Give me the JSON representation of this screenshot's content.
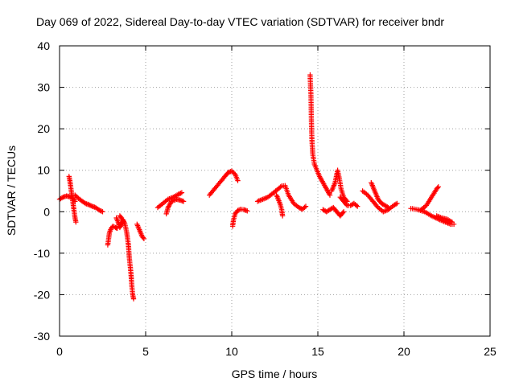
{
  "chart_data": {
    "type": "scatter",
    "title": "Day 069 of 2022, Sidereal Day-to-day VTEC variation (SDTVAR) for receiver bndr",
    "xlabel": "GPS time / hours",
    "ylabel": "SDTVAR / TECUs",
    "xlim": [
      0,
      25
    ],
    "ylim": [
      -30,
      40
    ],
    "xticks": [
      "0",
      "5",
      "10",
      "15",
      "20",
      "25"
    ],
    "yticks": [
      "40",
      "30",
      "20",
      "10",
      "0",
      "-10",
      "-20",
      "-30"
    ],
    "grid": true,
    "marker": "plus",
    "series": [
      {
        "name": "SDTVAR",
        "color": "#ff0000",
        "segments": [
          [
            [
              0.0,
              3.0
            ],
            [
              0.2,
              3.5
            ],
            [
              0.4,
              3.8
            ],
            [
              0.6,
              3.6
            ],
            [
              0.8,
              3.2
            ],
            [
              0.9,
              2.5
            ]
          ],
          [
            [
              0.55,
              8.5
            ],
            [
              0.6,
              7.5
            ],
            [
              0.65,
              6.0
            ],
            [
              0.7,
              4.5
            ],
            [
              0.75,
              3.0
            ],
            [
              0.8,
              1.5
            ],
            [
              0.85,
              0.0
            ],
            [
              0.9,
              -1.5
            ],
            [
              0.95,
              -2.5
            ]
          ],
          [
            [
              0.9,
              4.0
            ],
            [
              1.1,
              3.2
            ],
            [
              1.3,
              2.6
            ],
            [
              1.5,
              2.0
            ],
            [
              1.7,
              1.7
            ],
            [
              1.9,
              1.3
            ],
            [
              2.1,
              1.0
            ],
            [
              2.3,
              0.4
            ],
            [
              2.5,
              0.0
            ]
          ],
          [
            [
              2.8,
              -8.0
            ],
            [
              2.85,
              -6.5
            ],
            [
              2.9,
              -5.0
            ],
            [
              3.0,
              -4.0
            ],
            [
              3.1,
              -3.5
            ],
            [
              3.25,
              -3.8
            ],
            [
              3.35,
              -4.0
            ]
          ],
          [
            [
              3.3,
              -1.5
            ],
            [
              3.4,
              -2.5
            ],
            [
              3.5,
              -3.8
            ],
            [
              3.6,
              -3.0
            ],
            [
              3.7,
              -2.0
            ],
            [
              3.8,
              -3.0
            ],
            [
              3.9,
              -5.0
            ],
            [
              4.0,
              -8.0
            ],
            [
              4.05,
              -11.0
            ],
            [
              4.1,
              -13.0
            ],
            [
              4.15,
              -15.0
            ],
            [
              4.2,
              -18.0
            ],
            [
              4.25,
              -20.0
            ],
            [
              4.3,
              -21.0
            ]
          ],
          [
            [
              3.5,
              -1.0
            ],
            [
              3.6,
              -1.5
            ],
            [
              3.7,
              -2.5
            ]
          ],
          [
            [
              4.5,
              -3.0
            ],
            [
              4.6,
              -4.0
            ],
            [
              4.7,
              -5.0
            ],
            [
              4.8,
              -6.0
            ],
            [
              4.9,
              -6.5
            ]
          ],
          [
            [
              5.7,
              1.0
            ],
            [
              6.0,
              2.0
            ],
            [
              6.3,
              3.0
            ],
            [
              6.6,
              3.5
            ],
            [
              6.9,
              4.2
            ],
            [
              7.1,
              4.6
            ]
          ],
          [
            [
              6.2,
              -0.5
            ],
            [
              6.3,
              1.0
            ],
            [
              6.5,
              2.5
            ],
            [
              6.8,
              3.0
            ],
            [
              7.0,
              2.8
            ],
            [
              7.2,
              2.5
            ]
          ],
          [
            [
              8.7,
              4.0
            ],
            [
              9.0,
              5.5
            ],
            [
              9.3,
              7.0
            ],
            [
              9.6,
              8.5
            ],
            [
              9.8,
              9.5
            ],
            [
              10.0,
              9.8
            ],
            [
              10.2,
              9.0
            ],
            [
              10.35,
              7.5
            ]
          ],
          [
            [
              10.05,
              -3.5
            ],
            [
              10.1,
              -2.0
            ],
            [
              10.2,
              -0.5
            ],
            [
              10.35,
              0.3
            ],
            [
              10.5,
              0.6
            ],
            [
              10.7,
              0.5
            ],
            [
              10.9,
              0.2
            ]
          ],
          [
            [
              11.5,
              2.5
            ],
            [
              11.8,
              3.0
            ],
            [
              12.1,
              3.5
            ],
            [
              12.4,
              4.5
            ],
            [
              12.7,
              5.5
            ],
            [
              12.9,
              6.2
            ],
            [
              13.1,
              6.3
            ],
            [
              13.3,
              4.0
            ],
            [
              13.6,
              2.0
            ],
            [
              13.9,
              1.0
            ],
            [
              14.1,
              0.6
            ],
            [
              14.3,
              1.3
            ]
          ],
          [
            [
              12.6,
              4.0
            ],
            [
              12.8,
              2.0
            ],
            [
              12.9,
              0.5
            ],
            [
              12.95,
              -1.0
            ]
          ],
          [
            [
              14.55,
              33.0
            ],
            [
              14.6,
              28.0
            ],
            [
              14.62,
              23.0
            ],
            [
              14.65,
              18.0
            ],
            [
              14.7,
              14.0
            ],
            [
              14.8,
              11.5
            ],
            [
              14.95,
              10.0
            ],
            [
              15.1,
              8.5
            ],
            [
              15.3,
              7.0
            ],
            [
              15.5,
              5.5
            ],
            [
              15.7,
              4.0
            ]
          ],
          [
            [
              15.3,
              0.5
            ],
            [
              15.5,
              0.0
            ],
            [
              15.7,
              0.5
            ],
            [
              15.9,
              1.0
            ],
            [
              16.1,
              0.0
            ],
            [
              16.3,
              -1.0
            ],
            [
              16.5,
              0.0
            ]
          ],
          [
            [
              15.8,
              5.0
            ],
            [
              16.0,
              7.0
            ],
            [
              16.15,
              10.0
            ],
            [
              16.25,
              8.0
            ],
            [
              16.35,
              5.5
            ],
            [
              16.5,
              3.5
            ],
            [
              16.7,
              2.5
            ]
          ],
          [
            [
              16.3,
              3.5
            ],
            [
              16.5,
              2.5
            ],
            [
              16.7,
              1.5
            ],
            [
              16.9,
              1.5
            ],
            [
              17.1,
              2.0
            ],
            [
              17.3,
              1.3
            ]
          ],
          [
            [
              17.6,
              5.0
            ],
            [
              17.9,
              4.0
            ],
            [
              18.2,
              2.5
            ],
            [
              18.5,
              1.0
            ],
            [
              18.8,
              0.0
            ],
            [
              19.1,
              0.5
            ],
            [
              19.4,
              1.5
            ],
            [
              19.6,
              2.0
            ]
          ],
          [
            [
              18.1,
              7.0
            ],
            [
              18.3,
              5.0
            ],
            [
              18.5,
              3.0
            ],
            [
              18.7,
              2.0
            ],
            [
              18.9,
              1.5
            ],
            [
              19.1,
              1.0
            ]
          ],
          [
            [
              20.4,
              0.8
            ],
            [
              20.8,
              0.5
            ],
            [
              21.2,
              0.0
            ],
            [
              21.6,
              -1.0
            ],
            [
              22.0,
              -1.8
            ],
            [
              22.4,
              -2.5
            ],
            [
              22.7,
              -3.0
            ],
            [
              22.9,
              -3.0
            ]
          ],
          [
            [
              21.0,
              0.5
            ],
            [
              21.3,
              1.5
            ],
            [
              21.6,
              3.5
            ],
            [
              21.9,
              5.5
            ],
            [
              22.0,
              6.0
            ]
          ],
          [
            [
              21.9,
              -1.0
            ],
            [
              22.2,
              -1.5
            ],
            [
              22.5,
              -1.8
            ],
            [
              22.8,
              -2.5
            ]
          ]
        ]
      }
    ]
  }
}
